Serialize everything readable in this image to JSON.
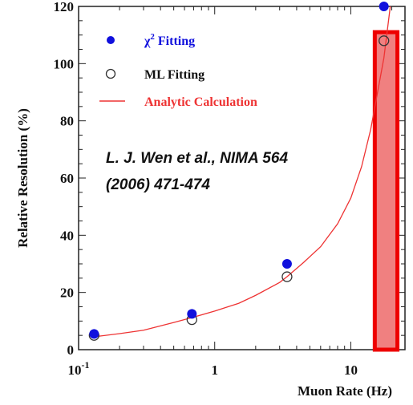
{
  "chart_data": {
    "type": "scatter",
    "xlabel": "Muon Rate (Hz)",
    "ylabel": "Relative Resolution (%)",
    "x_scale": "log",
    "xlim": [
      0.1,
      25
    ],
    "ylim": [
      0,
      120
    ],
    "x_ticks": [
      {
        "value": 0.1,
        "base": "10",
        "exp": "-1"
      },
      {
        "value": 1,
        "base": "1",
        "exp": ""
      },
      {
        "value": 10,
        "base": "10",
        "exp": ""
      }
    ],
    "y_ticks": [
      0,
      20,
      40,
      60,
      80,
      100,
      120
    ],
    "series": [
      {
        "name_prefix": "χ",
        "name_sup": "2",
        "name_suffix": " Fitting",
        "marker": "filled-circle",
        "color": "#1010dd",
        "x": [
          0.13,
          0.68,
          3.4,
          17.5
        ],
        "y": [
          5.5,
          12.5,
          30,
          120
        ]
      },
      {
        "name_prefix": "ML Fitting",
        "name_sup": "",
        "name_suffix": "",
        "marker": "open-circle",
        "color": "#333333",
        "x": [
          0.13,
          0.68,
          3.4,
          17.5
        ],
        "y": [
          5,
          10.5,
          25.5,
          108
        ]
      },
      {
        "name_prefix": "Analytic Calculation",
        "name_sup": "",
        "name_suffix": "",
        "marker": "line",
        "color": "#ee3333",
        "x": [
          0.13,
          0.2,
          0.3,
          0.5,
          0.68,
          1,
          1.5,
          2,
          3,
          3.4,
          4.5,
          6,
          8,
          10,
          12,
          14,
          17.5,
          19.5
        ],
        "y": [
          4.5,
          5.6,
          6.8,
          9.5,
          11.2,
          13.5,
          16.2,
          19,
          23.5,
          25.5,
          30.5,
          36,
          44,
          53,
          64,
          77,
          102,
          120
        ]
      }
    ],
    "legend_position": "top-left",
    "highlight": {
      "x_from": 15,
      "x_to": 22,
      "y_from": 0,
      "y_to": 111,
      "fill": "#f08080",
      "stroke": "#ee0000"
    },
    "annotation": {
      "line1": "L. J. Wen et al., NIMA 564",
      "line2": "(2006) 471-474"
    }
  }
}
